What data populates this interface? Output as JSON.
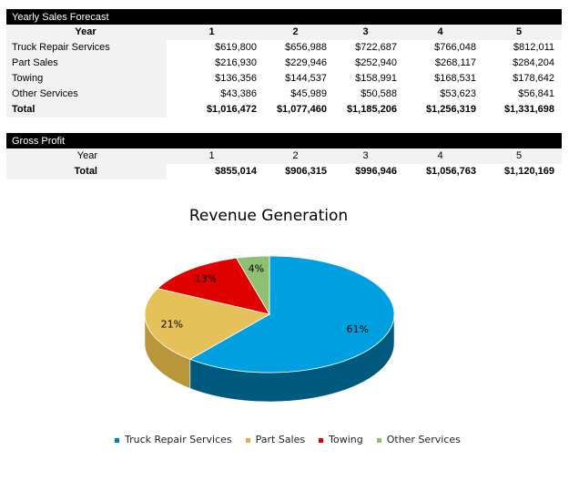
{
  "sales": {
    "title": "Yearly Sales Forecast",
    "year_label": "Year",
    "years": [
      "1",
      "2",
      "3",
      "4",
      "5"
    ],
    "rows": [
      {
        "label": "Truck Repair Services",
        "values": [
          "$619,800",
          "$656,988",
          "$722,687",
          "$766,048",
          "$812,011"
        ]
      },
      {
        "label": "Part Sales",
        "values": [
          "$216,930",
          "$229,946",
          "$252,940",
          "$268,117",
          "$284,204"
        ]
      },
      {
        "label": "Towing",
        "values": [
          "$136,356",
          "$144,537",
          "$158,991",
          "$168,531",
          "$178,642"
        ]
      },
      {
        "label": "Other Services",
        "values": [
          "$43,386",
          "$45,989",
          "$50,588",
          "$53,623",
          "$56,841"
        ]
      },
      {
        "label": "Total",
        "values": [
          "$1,016,472",
          "$1,077,460",
          "$1,185,206",
          "$1,256,319",
          "$1,331,698"
        ]
      }
    ]
  },
  "gross": {
    "title": "Gross Profit",
    "year_label": "Year",
    "years": [
      "1",
      "2",
      "3",
      "4",
      "5"
    ],
    "total_label": "Total",
    "totals": [
      "$855,014",
      "$906,315",
      "$996,946",
      "$1,056,763",
      "$1,120,169"
    ]
  },
  "chart_data": {
    "type": "pie",
    "title": "Revenue Generation",
    "legend_position": "bottom",
    "categories": [
      "Truck Repair Services",
      "Part Sales",
      "Towing",
      "Other Services"
    ],
    "values": [
      619800,
      216930,
      136356,
      43386
    ],
    "labels": [
      "61%",
      "21%",
      "13%",
      "4%"
    ],
    "colors": [
      "#00a0e0",
      "#e6c058",
      "#e00000",
      "#8fbf70"
    ]
  }
}
